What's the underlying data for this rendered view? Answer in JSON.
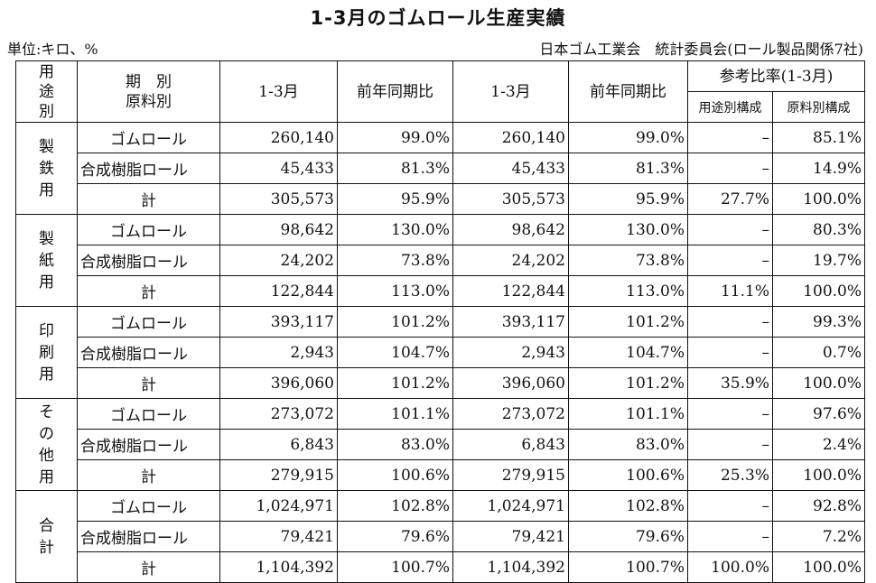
{
  "title": "1-3月のゴムロール生産実績",
  "unit_label": "単位:キロ、%",
  "source_label": "日本ゴム工業会　統計委員会(ロール製品関係7社)",
  "header": {
    "use_label_chars": [
      "用",
      "途",
      "別"
    ],
    "period_line1": "期　別",
    "period_line2": "原料別",
    "col_1_3": "1-3月",
    "col_yoy": "前年同期比",
    "col_1_3_b": "1-3月",
    "col_yoy_b": "前年同期比",
    "ratio_group": "参考比率(1-3月)",
    "ratio_use": "用途別構成",
    "ratio_material": "原料別構成"
  },
  "groups": [
    {
      "name_chars": [
        "製",
        "鉄",
        "用"
      ],
      "rows": [
        {
          "label": "ゴムロール",
          "v1": "260,140",
          "r1": "99.0%",
          "v2": "260,140",
          "r2": "99.0%",
          "use": "–",
          "mat": "85.1%"
        },
        {
          "label": "合成樹脂ロール",
          "v1": "45,433",
          "r1": "81.3%",
          "v2": "45,433",
          "r2": "81.3%",
          "use": "–",
          "mat": "14.9%"
        },
        {
          "label": "計",
          "v1": "305,573",
          "r1": "95.9%",
          "v2": "305,573",
          "r2": "95.9%",
          "use": "27.7%",
          "mat": "100.0%"
        }
      ]
    },
    {
      "name_chars": [
        "製",
        "紙",
        "用"
      ],
      "rows": [
        {
          "label": "ゴムロール",
          "v1": "98,642",
          "r1": "130.0%",
          "v2": "98,642",
          "r2": "130.0%",
          "use": "–",
          "mat": "80.3%"
        },
        {
          "label": "合成樹脂ロール",
          "v1": "24,202",
          "r1": "73.8%",
          "v2": "24,202",
          "r2": "73.8%",
          "use": "–",
          "mat": "19.7%"
        },
        {
          "label": "計",
          "v1": "122,844",
          "r1": "113.0%",
          "v2": "122,844",
          "r2": "113.0%",
          "use": "11.1%",
          "mat": "100.0%"
        }
      ]
    },
    {
      "name_chars": [
        "印",
        "刷",
        "用"
      ],
      "rows": [
        {
          "label": "ゴムロール",
          "v1": "393,117",
          "r1": "101.2%",
          "v2": "393,117",
          "r2": "101.2%",
          "use": "–",
          "mat": "99.3%"
        },
        {
          "label": "合成樹脂ロール",
          "v1": "2,943",
          "r1": "104.7%",
          "v2": "2,943",
          "r2": "104.7%",
          "use": "–",
          "mat": "0.7%"
        },
        {
          "label": "計",
          "v1": "396,060",
          "r1": "101.2%",
          "v2": "396,060",
          "r2": "101.2%",
          "use": "35.9%",
          "mat": "100.0%"
        }
      ]
    },
    {
      "name_chars": [
        "そ",
        "の",
        "他",
        "用"
      ],
      "rows": [
        {
          "label": "ゴムロール",
          "v1": "273,072",
          "r1": "101.1%",
          "v2": "273,072",
          "r2": "101.1%",
          "use": "–",
          "mat": "97.6%"
        },
        {
          "label": "合成樹脂ロール",
          "v1": "6,843",
          "r1": "83.0%",
          "v2": "6,843",
          "r2": "83.0%",
          "use": "–",
          "mat": "2.4%"
        },
        {
          "label": "計",
          "v1": "279,915",
          "r1": "100.6%",
          "v2": "279,915",
          "r2": "100.6%",
          "use": "25.3%",
          "mat": "100.0%"
        }
      ]
    },
    {
      "name_chars": [
        "合",
        "計"
      ],
      "rows": [
        {
          "label": "ゴムロール",
          "v1": "1,024,971",
          "r1": "102.8%",
          "v2": "1,024,971",
          "r2": "102.8%",
          "use": "–",
          "mat": "92.8%"
        },
        {
          "label": "合成樹脂ロール",
          "v1": "79,421",
          "r1": "79.6%",
          "v2": "79,421",
          "r2": "79.6%",
          "use": "–",
          "mat": "7.2%"
        },
        {
          "label": "計",
          "v1": "1,104,392",
          "r1": "100.7%",
          "v2": "1,104,392",
          "r2": "100.7%",
          "use": "100.0%",
          "mat": "100.0%"
        }
      ]
    }
  ]
}
